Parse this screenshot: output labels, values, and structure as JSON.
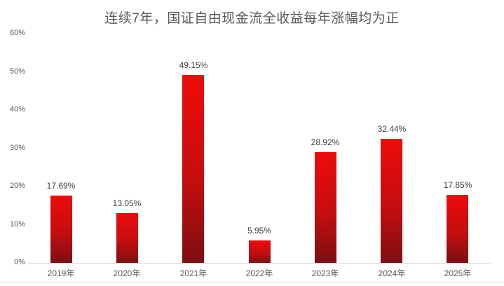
{
  "title": "连续7年，国证自由现金流全收益每年涨幅均为正",
  "colors": {
    "bar_gradient_top": "#ee0c0c",
    "bar_gradient_bottom": "#7e0e12",
    "title_text": "#595959",
    "axis_text": "#595959",
    "data_label_text": "#404040",
    "axis_line": "#d9d9d9",
    "bottom_border": "#e2e2e2",
    "background": "#ffffff"
  },
  "chart_data": {
    "type": "bar",
    "title": "连续7年，国证自由现金流全收益每年涨幅均为正",
    "categories": [
      "2019年",
      "2020年",
      "2021年",
      "2022年",
      "2023年",
      "2024年",
      "2025年"
    ],
    "values": [
      17.69,
      13.05,
      49.15,
      5.95,
      28.92,
      32.44,
      17.85
    ],
    "data_labels": [
      "17.69%",
      "13.05%",
      "49.15%",
      "5.95%",
      "28.92%",
      "32.44%",
      "17.85%"
    ],
    "y_ticks": [
      0,
      10,
      20,
      30,
      40,
      50,
      60
    ],
    "y_tick_labels": [
      "0%",
      "10%",
      "20%",
      "30%",
      "40%",
      "50%",
      "60%"
    ],
    "xlabel": "",
    "ylabel": "",
    "ylim": [
      0,
      60
    ],
    "grid": false,
    "legend": false
  }
}
